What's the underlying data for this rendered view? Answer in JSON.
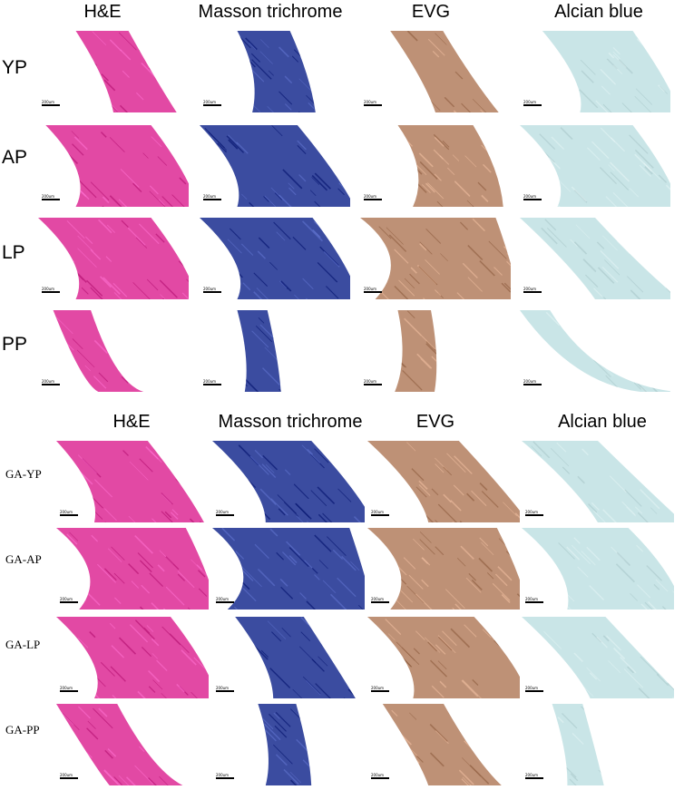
{
  "groups": [
    {
      "headers": [
        "H&E",
        "Masson trichrome",
        "EVG",
        "Alcian blue"
      ],
      "rows": [
        "YP",
        "AP",
        "LP",
        "PP"
      ]
    },
    {
      "headers": [
        "H&E",
        "Masson trichrome",
        "EVG",
        "Alcian blue"
      ],
      "rows": [
        "GA-YP",
        "GA-AP",
        "GA-LP",
        "GA-PP"
      ]
    }
  ],
  "scale_bar_label": "200um",
  "stain_colors": {
    "he": "#e03a9c",
    "masson": "#2a3d98",
    "evg": "#b9886a",
    "alcian": "#bfe0e3"
  }
}
